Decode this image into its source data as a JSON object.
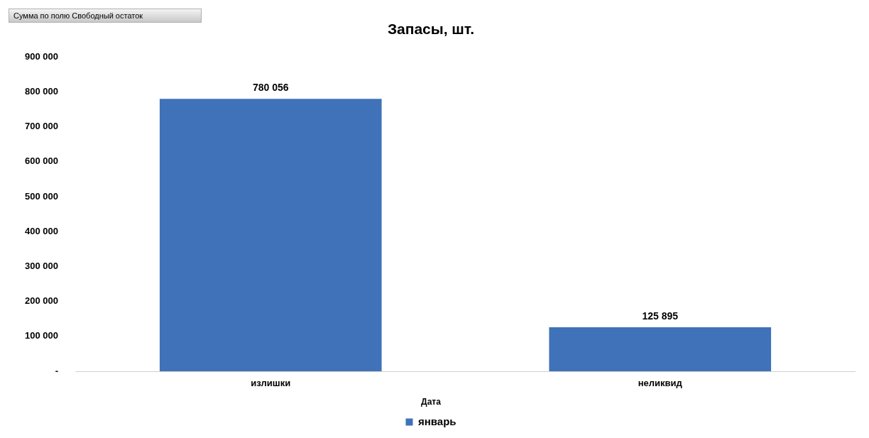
{
  "chart_data": {
    "type": "bar",
    "title": "Запасы, шт.",
    "annotations": [
      "Сумма по полю Свободный остаток"
    ],
    "categories": [
      "излишки",
      "неликвид"
    ],
    "series": [
      {
        "name": "январь",
        "color": "#3f72b9",
        "values": [
          780056,
          125895
        ],
        "value_labels": [
          "780 056",
          "125 895"
        ]
      }
    ],
    "ylim": [
      0,
      900000
    ],
    "yticks": [
      {
        "value": 0,
        "label": "-"
      },
      {
        "value": 100000,
        "label": "100 000"
      },
      {
        "value": 200000,
        "label": "200 000"
      },
      {
        "value": 300000,
        "label": "300 000"
      },
      {
        "value": 400000,
        "label": "400 000"
      },
      {
        "value": 500000,
        "label": "500 000"
      },
      {
        "value": 600000,
        "label": "600 000"
      },
      {
        "value": 700000,
        "label": "700 000"
      },
      {
        "value": 800000,
        "label": "800 000"
      },
      {
        "value": 900000,
        "label": "900 000"
      }
    ],
    "legend_title": "Дата",
    "legend": "bottom",
    "grid": false
  }
}
